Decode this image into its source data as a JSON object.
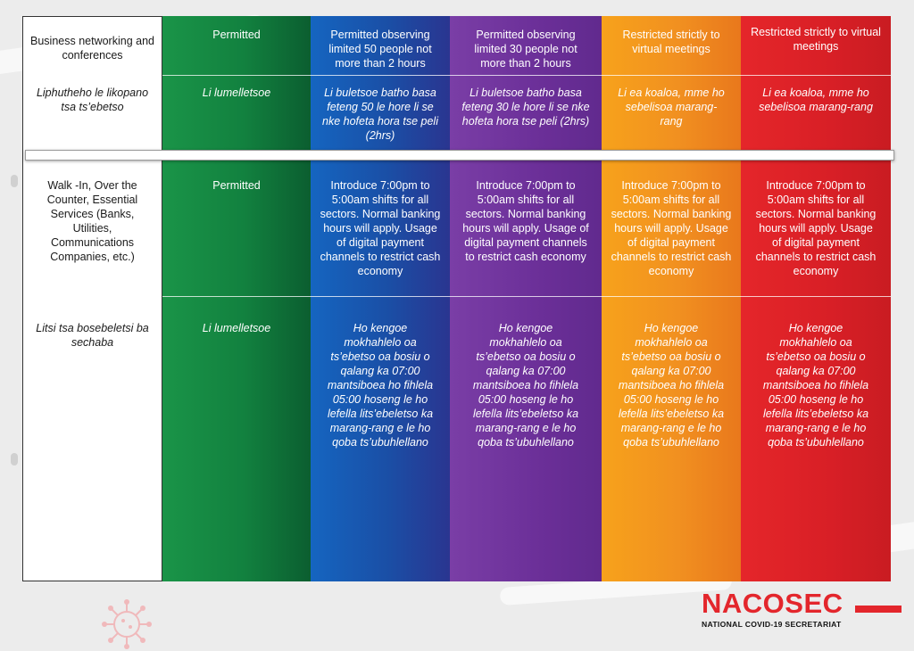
{
  "rows": [
    {
      "label": "Business networking and conferences",
      "label_italic": false,
      "cells": [
        "Permitted",
        "Permitted observing limited 50 people not more than 2 hours",
        "Permitted observing limited 30 people not more than 2 hours",
        "Restricted strictly to virtual meetings",
        "Restricted strictly to virtual meetings"
      ]
    },
    {
      "label": "Liphutheho le likopano tsa ts’ebetso",
      "label_italic": true,
      "cells": [
        "Li lumelletsoe",
        "Li buletsoe batho basa feteng 50 le hore li se nke hofeta hora tse peli (2hrs)",
        "Li buletsoe batho basa feteng 30 le hore li se nke hofeta hora tse peli (2hrs)",
        "Li ea koaloa, mme ho sebelisoa marang-rang",
        "Li ea koaloa, mme ho sebelisoa marang-rang"
      ]
    },
    {
      "label": "Walk -In, Over the Counter, Essential Services (Banks, Utilities, Communications Companies, etc.)",
      "label_italic": false,
      "cells": [
        "Permitted",
        "Introduce 7:00pm to 5:00am shifts for all sectors.  Normal banking hours will apply.  Usage of digital payment channels to restrict cash economy",
        "Introduce 7:00pm to 5:00am shifts for all sectors.  Normal banking hours will apply.  Usage of digital payment channels to restrict cash economy",
        "Introduce 7:00pm to 5:00am shifts for all sectors.  Normal banking hours will apply.  Usage of digital payment channels to restrict cash economy",
        "Introduce 7:00pm to 5:00am shifts for all sectors.  Normal banking hours will apply.  Usage of digital payment channels to restrict cash economy"
      ]
    },
    {
      "label": "Litsi tsa bosebeletsi ba sechaba",
      "label_italic": true,
      "cells": [
        "Li lumelletsoe",
        "Ho kengoe mokhahlelo oa ts’ebetso oa bosiu o qalang ka 07:00 mantsiboea ho fihlela 05:00 hoseng le ho lefella lits’ebeletso ka marang-rang e le ho qoba ts’ubuhlellano",
        "Ho kengoe mokhahlelo oa ts’ebetso oa bosiu o qalang ka 07:00 mantsiboea ho fihlela 05:00 hoseng le ho lefella lits’ebeletso ka marang-rang e le ho qoba ts’ubuhlellano",
        "Ho kengoe mokhahlelo oa ts’ebetso oa bosiu o qalang ka 07:00 mantsiboea ho fihlela 05:00 hoseng le ho lefella lits’ebeletso ka marang-rang e le ho qoba ts’ubuhlellano",
        "Ho kengoe mokhahlelo oa ts’ebetso oa bosiu o qalang ka 07:00 mantsiboea ho fihlela 05:00 hoseng le ho lefella lits’ebeletso ka marang-rang e le ho qoba ts’ubuhlellano"
      ]
    }
  ],
  "level_colors": [
    "#12813f",
    "#1a4fa6",
    "#6b2f98",
    "#f19020",
    "#d81f26"
  ],
  "logo": {
    "name": "NACOSEC",
    "subtitle": "NATIONAL COVID-19 SECRETARIAT",
    "color": "#e3262c"
  },
  "decorations": [
    "virus-icon"
  ]
}
